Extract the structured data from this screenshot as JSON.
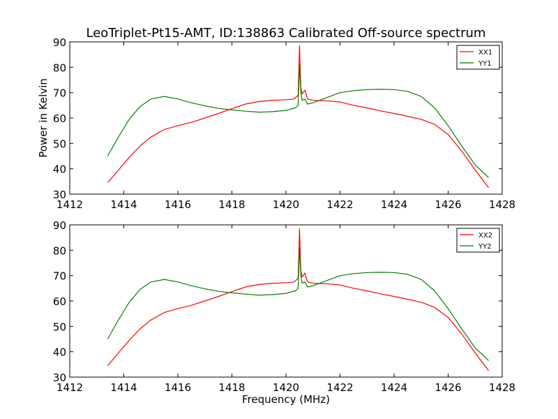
{
  "figure": {
    "title": "LeoTriplet-Pt15-AMT, ID:138863 Calibrated Off-source spectrum",
    "xlabel": "Frequency (MHz)",
    "ylabel": "Power in Kelvin"
  },
  "chart_data": [
    {
      "type": "line",
      "xlabel": "",
      "ylabel": "Power in Kelvin",
      "xlim": [
        1412,
        1428
      ],
      "ylim": [
        30,
        90
      ],
      "xticks": [
        1412,
        1414,
        1416,
        1418,
        1420,
        1422,
        1424,
        1426,
        1428
      ],
      "yticks": [
        30,
        40,
        50,
        60,
        70,
        80,
        90
      ],
      "grid": false,
      "legend": "top-right",
      "series": [
        {
          "name": "XX1",
          "color": "#ff0000",
          "x": [
            1413.4,
            1413.8,
            1414.2,
            1414.6,
            1415.0,
            1415.5,
            1416.0,
            1416.5,
            1417.0,
            1417.5,
            1418.0,
            1418.5,
            1419.0,
            1419.5,
            1420.0,
            1420.3,
            1420.45,
            1420.5,
            1420.55,
            1420.6,
            1420.7,
            1420.8,
            1421.0,
            1421.5,
            1422.0,
            1422.5,
            1423.0,
            1423.5,
            1424.0,
            1424.5,
            1425.0,
            1425.5,
            1426.0,
            1426.5,
            1427.0,
            1427.5
          ],
          "y": [
            34.5,
            39.5,
            44.5,
            49.0,
            52.5,
            55.5,
            57.0,
            58.3,
            60.0,
            61.8,
            63.7,
            65.5,
            66.5,
            67.0,
            67.2,
            67.5,
            69.0,
            88.5,
            72.0,
            69.5,
            71.0,
            67.5,
            67.0,
            66.8,
            66.3,
            65.0,
            64.0,
            62.8,
            61.8,
            60.7,
            59.5,
            57.5,
            53.5,
            47.0,
            39.5,
            32.5
          ]
        },
        {
          "name": "YY1",
          "color": "#008000",
          "x": [
            1413.4,
            1413.8,
            1414.2,
            1414.6,
            1415.0,
            1415.5,
            1416.0,
            1416.5,
            1417.0,
            1417.5,
            1418.0,
            1418.5,
            1419.0,
            1419.5,
            1420.0,
            1420.35,
            1420.45,
            1420.5,
            1420.55,
            1420.6,
            1420.7,
            1420.8,
            1421.0,
            1421.5,
            1422.0,
            1422.5,
            1423.0,
            1423.5,
            1424.0,
            1424.5,
            1425.0,
            1425.5,
            1426.0,
            1426.5,
            1427.0,
            1427.5
          ],
          "y": [
            45.0,
            52.5,
            59.5,
            64.5,
            67.5,
            68.5,
            67.5,
            66.0,
            64.8,
            63.8,
            63.2,
            62.7,
            62.3,
            62.5,
            63.0,
            64.0,
            65.0,
            81.0,
            70.0,
            67.0,
            67.5,
            65.5,
            66.0,
            68.0,
            70.0,
            70.8,
            71.2,
            71.3,
            71.2,
            70.5,
            68.5,
            64.0,
            57.0,
            49.0,
            41.5,
            36.5
          ]
        }
      ]
    },
    {
      "type": "line",
      "xlabel": "Frequency (MHz)",
      "ylabel": "",
      "xlim": [
        1412,
        1428
      ],
      "ylim": [
        30,
        90
      ],
      "xticks": [
        1412,
        1414,
        1416,
        1418,
        1420,
        1422,
        1424,
        1426,
        1428
      ],
      "yticks": [
        30,
        40,
        50,
        60,
        70,
        80,
        90
      ],
      "grid": false,
      "legend": "top-right",
      "series": [
        {
          "name": "XX2",
          "color": "#ff0000",
          "x": [
            1413.4,
            1413.8,
            1414.2,
            1414.6,
            1415.0,
            1415.5,
            1416.0,
            1416.5,
            1417.0,
            1417.5,
            1418.0,
            1418.5,
            1419.0,
            1419.5,
            1420.0,
            1420.3,
            1420.45,
            1420.5,
            1420.55,
            1420.6,
            1420.7,
            1420.8,
            1421.0,
            1421.5,
            1422.0,
            1422.5,
            1423.0,
            1423.5,
            1424.0,
            1424.5,
            1425.0,
            1425.5,
            1426.0,
            1426.5,
            1427.0,
            1427.5
          ],
          "y": [
            34.5,
            39.5,
            44.5,
            49.0,
            52.5,
            55.5,
            57.0,
            58.3,
            60.0,
            61.8,
            63.7,
            65.5,
            66.5,
            67.0,
            67.2,
            67.5,
            69.0,
            88.5,
            72.0,
            69.5,
            71.0,
            67.5,
            67.0,
            66.8,
            66.3,
            65.0,
            64.0,
            62.8,
            61.8,
            60.7,
            59.5,
            57.5,
            53.5,
            47.0,
            39.5,
            32.5
          ]
        },
        {
          "name": "YY2",
          "color": "#008000",
          "x": [
            1413.4,
            1413.8,
            1414.2,
            1414.6,
            1415.0,
            1415.5,
            1416.0,
            1416.5,
            1417.0,
            1417.5,
            1418.0,
            1418.5,
            1419.0,
            1419.5,
            1420.0,
            1420.35,
            1420.45,
            1420.5,
            1420.55,
            1420.6,
            1420.7,
            1420.8,
            1421.0,
            1421.5,
            1422.0,
            1422.5,
            1423.0,
            1423.5,
            1424.0,
            1424.5,
            1425.0,
            1425.5,
            1426.0,
            1426.5,
            1427.0,
            1427.5
          ],
          "y": [
            45.0,
            52.5,
            59.5,
            64.5,
            67.5,
            68.5,
            67.5,
            66.0,
            64.8,
            63.8,
            63.2,
            62.7,
            62.3,
            62.5,
            63.0,
            64.0,
            65.0,
            81.0,
            70.0,
            67.0,
            67.5,
            65.5,
            66.0,
            68.0,
            70.0,
            70.8,
            71.2,
            71.3,
            71.2,
            70.5,
            68.5,
            64.0,
            57.0,
            49.0,
            41.5,
            36.5
          ]
        }
      ]
    }
  ]
}
